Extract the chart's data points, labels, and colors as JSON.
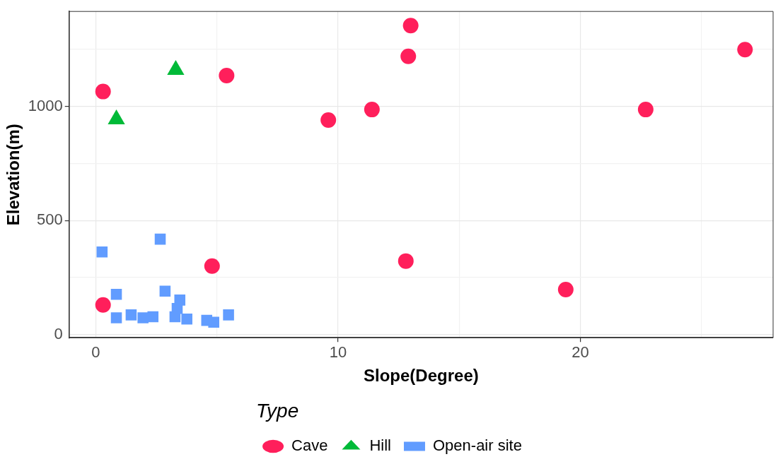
{
  "chart_data": {
    "type": "scatter",
    "xlabel": "Slope(Degree)",
    "ylabel": "Elevation(m)",
    "legend_title": "Type",
    "legend": "bottom",
    "grid": true,
    "xlim": [
      -1.1,
      27.96
    ],
    "ylim": [
      -14,
      1416
    ],
    "xticks": [
      0,
      {
        "value": 5,
        "label": null
      },
      10,
      {
        "value": 15,
        "label": null
      },
      20,
      {
        "value": 25,
        "label": null
      }
    ],
    "yticks": [
      0,
      {
        "value": 250,
        "label": null
      },
      500,
      {
        "value": 750,
        "label": null
      },
      1000,
      {
        "value": 1250,
        "label": null
      }
    ],
    "series": [
      {
        "name": "Cave",
        "color": "#ff1f5b",
        "marker": "circle",
        "x": [
          13.0,
          26.8,
          12.9,
          5.4,
          0.3,
          11.4,
          22.7,
          9.6,
          4.8,
          12.8,
          19.4,
          0.3
        ],
        "values": [
          1354,
          1249,
          1219,
          1135,
          1065,
          986,
          986,
          940,
          300,
          322,
          197,
          130
        ]
      },
      {
        "name": "Hill",
        "color": "#00ba38",
        "marker": "triangle",
        "x": [
          3.3,
          0.85
        ],
        "values": [
          1160,
          943
        ]
      },
      {
        "name": "Open-air site",
        "color": "#619cff",
        "marker": "square",
        "x": [
          0.26,
          2.66,
          0.85,
          2.86,
          3.47,
          3.36,
          0.85,
          1.46,
          1.95,
          2.36,
          3.27,
          3.76,
          4.58,
          4.87,
          5.48
        ],
        "values": [
          362,
          418,
          176,
          190,
          151,
          114,
          73,
          86,
          73,
          78,
          78,
          68,
          62,
          54,
          86
        ]
      }
    ]
  }
}
